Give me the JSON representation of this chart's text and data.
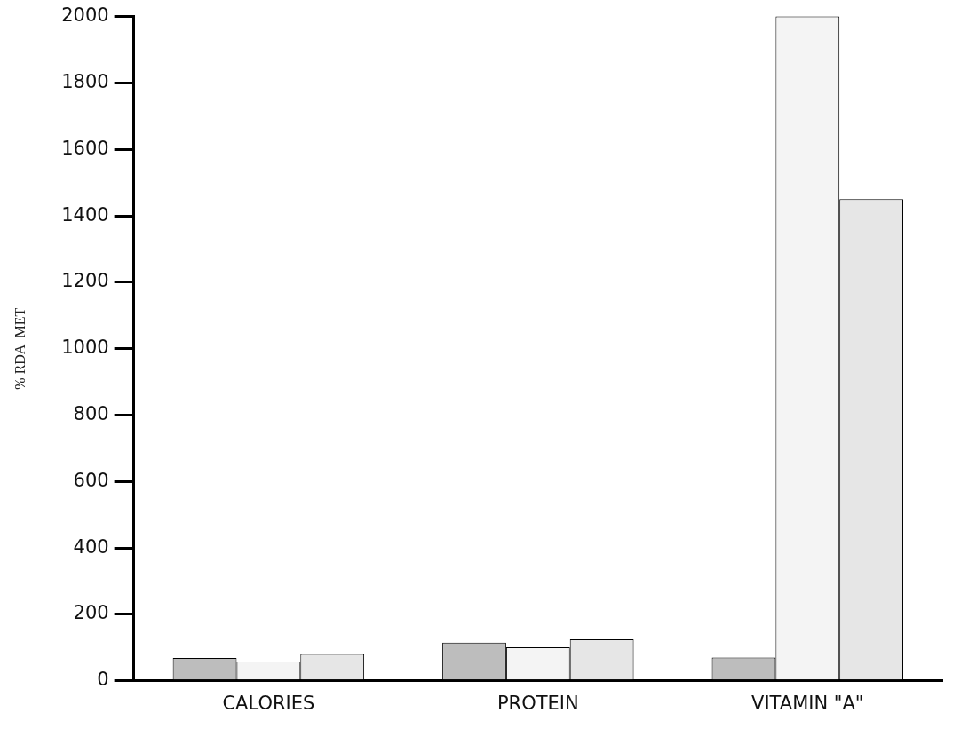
{
  "chart_data": {
    "type": "bar",
    "ylabel": "% RDA  MET",
    "categories": [
      "CALORIES",
      "PROTEIN",
      "VITAMIN \"A\""
    ],
    "series": [
      {
        "color": "#bdbdbd",
        "values": [
          69,
          115,
          70
        ]
      },
      {
        "color": "#f4f4f4",
        "values": [
          58,
          101,
          2000
        ]
      },
      {
        "color": "#e6e6e6",
        "values": [
          81,
          125,
          1450
        ]
      }
    ],
    "ylim": [
      0,
      2000
    ],
    "yticks": [
      0,
      200,
      400,
      600,
      800,
      1000,
      1200,
      1400,
      1600,
      1800,
      2000
    ],
    "grid": false,
    "legend": false
  }
}
